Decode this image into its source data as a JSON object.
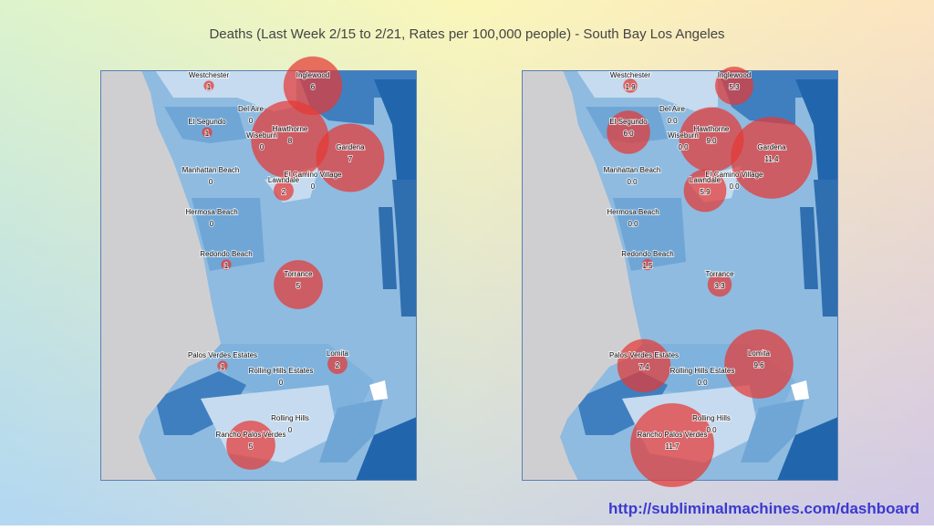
{
  "title": "Deaths (Last Week 2/15 to 2/21, Rates per 100,000 people) - South Bay Los Angeles",
  "url": "http://subliminalmachines.com/dashboard",
  "bubble_color": "#e53935",
  "maps": [
    {
      "places": [
        "Westchester",
        "Inglewood",
        "Del Aire",
        "El Segundo",
        "Hawthorne",
        "Wiseburn",
        "Gardena",
        "Manhattan Beach",
        "El Camino Village",
        "Lawndale",
        "Hermosa Beach",
        "Redondo Beach",
        "Torrance",
        "Palos Verdes Estates",
        "Lomita",
        "Rolling Hills Estates",
        "Rolling Hills",
        "Rancho Palos Verdes"
      ],
      "values": [
        1,
        6,
        0,
        1,
        8,
        0,
        7,
        0,
        0,
        2,
        0,
        1,
        5,
        1,
        2,
        0,
        0,
        5
      ]
    },
    {
      "places": [
        "Westchester",
        "Inglewood",
        "Del Aire",
        "El Segundo",
        "Hawthorne",
        "Wiseburn",
        "Gardena",
        "Manhattan Beach",
        "El Camino Village",
        "Lawndale",
        "Hermosa Beach",
        "Redondo Beach",
        "Torrance",
        "Palos Verdes Estates",
        "Lomita",
        "Rolling Hills Estates",
        "Rolling Hills",
        "Rancho Palos Verdes"
      ],
      "values": [
        1.9,
        5.3,
        0,
        6,
        9,
        0,
        11.4,
        0,
        0,
        5.9,
        0,
        1.5,
        3.3,
        7.4,
        9.6,
        0,
        0,
        11.7
      ],
      "value_labels": [
        "1.9",
        "5.3",
        "0.0",
        "6.0",
        "9.0",
        "0.0",
        "11.4",
        "0.0",
        "0.0",
        "5.9",
        "0.0",
        "1.5",
        "3.3",
        "7.4",
        "9.6",
        "0.0",
        "0.0",
        "11.7"
      ]
    }
  ]
}
